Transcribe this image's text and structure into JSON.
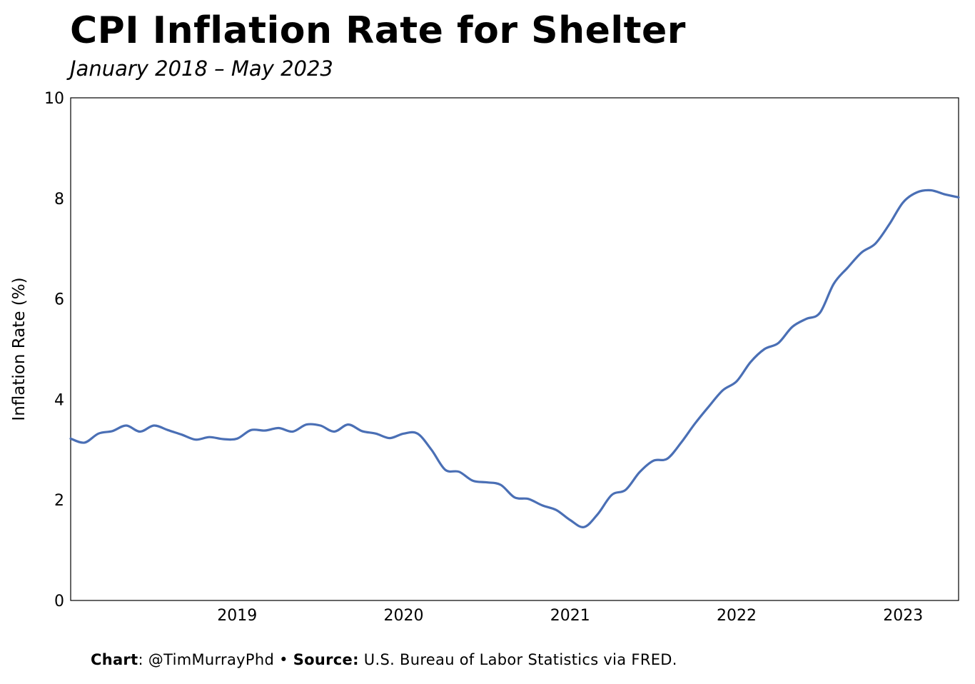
{
  "title": "CPI Inflation Rate for Shelter",
  "subtitle": "January 2018 – May 2023",
  "footer": {
    "chart_label": "Chart",
    "chart_value": ": @TimMurrayPhd",
    "separator": "•",
    "source_label": "Source:",
    "source_value": "U.S. Bureau of Labor Statistics via FRED."
  },
  "colors": {
    "line": "#4a6fb5",
    "axis": "#000000",
    "text": "#000000"
  },
  "chart_data": {
    "type": "line",
    "title": "CPI Inflation Rate for Shelter",
    "subtitle": "January 2018 – May 2023",
    "xlabel": "",
    "ylabel": "Inflation Rate (%)",
    "ylim": [
      0,
      10
    ],
    "yticks": [
      "0",
      "2",
      "4",
      "6",
      "8",
      "10"
    ],
    "xticks": [
      "2019",
      "2020",
      "2021",
      "2022",
      "2023"
    ],
    "xlim": [
      "2018-01",
      "2023-05"
    ],
    "grid": false,
    "legend": "none",
    "series": [
      {
        "x": [
          "2018-01",
          "2018-02",
          "2018-03",
          "2018-04",
          "2018-05",
          "2018-06",
          "2018-07",
          "2018-08",
          "2018-09",
          "2018-10",
          "2018-11",
          "2018-12",
          "2019-01",
          "2019-02",
          "2019-03",
          "2019-04",
          "2019-05",
          "2019-06",
          "2019-07",
          "2019-08",
          "2019-09",
          "2019-10",
          "2019-11",
          "2019-12",
          "2020-01",
          "2020-02",
          "2020-03",
          "2020-04",
          "2020-05",
          "2020-06",
          "2020-07",
          "2020-08",
          "2020-09",
          "2020-10",
          "2020-11",
          "2020-12",
          "2021-01",
          "2021-02",
          "2021-03",
          "2021-04",
          "2021-05",
          "2021-06",
          "2021-07",
          "2021-08",
          "2021-09",
          "2021-10",
          "2021-11",
          "2021-12",
          "2022-01",
          "2022-02",
          "2022-03",
          "2022-04",
          "2022-05",
          "2022-06",
          "2022-07",
          "2022-08",
          "2022-09",
          "2022-10",
          "2022-11",
          "2022-12",
          "2023-01",
          "2023-02",
          "2023-03",
          "2023-04",
          "2023-05"
        ],
        "values": [
          3.22,
          3.14,
          3.32,
          3.37,
          3.48,
          3.36,
          3.48,
          3.39,
          3.3,
          3.2,
          3.25,
          3.21,
          3.22,
          3.39,
          3.38,
          3.43,
          3.36,
          3.5,
          3.48,
          3.36,
          3.5,
          3.37,
          3.32,
          3.23,
          3.32,
          3.32,
          3.0,
          2.6,
          2.56,
          2.38,
          2.35,
          2.3,
          2.05,
          2.02,
          1.89,
          1.8,
          1.6,
          1.46,
          1.72,
          2.1,
          2.2,
          2.55,
          2.78,
          2.82,
          3.14,
          3.52,
          3.86,
          4.18,
          4.36,
          4.74,
          5.0,
          5.12,
          5.44,
          5.6,
          5.72,
          6.3,
          6.62,
          6.92,
          7.1,
          7.48,
          7.92,
          8.12,
          8.16,
          8.08,
          8.02
        ]
      }
    ]
  }
}
